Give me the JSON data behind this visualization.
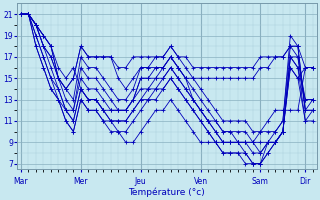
{
  "xlabel": "Température (°c)",
  "day_labels": [
    "Mar",
    "Mer",
    "Jeu",
    "Ven",
    "Sam",
    "Dir"
  ],
  "day_positions": [
    0,
    8,
    16,
    24,
    32,
    38
  ],
  "n_points": 40,
  "ylim": [
    6.5,
    22
  ],
  "yticks": [
    7,
    9,
    11,
    13,
    15,
    17,
    19,
    21
  ],
  "bg_color": "#c8e8f0",
  "grid_color_major": "#8ab0c0",
  "grid_color_minor": "#a8ccd8",
  "line_color": "#0000bb",
  "marker": "+",
  "lines": [
    [
      21,
      21,
      20,
      19,
      18,
      15,
      14,
      15,
      18,
      17,
      17,
      17,
      17,
      16,
      16,
      17,
      17,
      17,
      17,
      17,
      18,
      17,
      17,
      16,
      16,
      16,
      16,
      16,
      16,
      16,
      16,
      16,
      17,
      17,
      17,
      17,
      18,
      18,
      16,
      16
    ],
    [
      21,
      21,
      20,
      19,
      18,
      15,
      14,
      15,
      18,
      17,
      17,
      17,
      17,
      15,
      14,
      15,
      16,
      16,
      16,
      16,
      17,
      16,
      15,
      15,
      15,
      15,
      15,
      15,
      15,
      15,
      15,
      15,
      16,
      16,
      17,
      17,
      18,
      18,
      12,
      12
    ],
    [
      21,
      21,
      20,
      18,
      17,
      15,
      14,
      13,
      17,
      16,
      16,
      15,
      14,
      13,
      13,
      14,
      16,
      16,
      17,
      17,
      18,
      17,
      16,
      15,
      14,
      13,
      12,
      11,
      11,
      11,
      11,
      10,
      10,
      10,
      10,
      11,
      19,
      18,
      12,
      13
    ],
    [
      21,
      21,
      20,
      18,
      17,
      15,
      13,
      12,
      16,
      15,
      15,
      14,
      13,
      12,
      12,
      13,
      15,
      15,
      16,
      16,
      17,
      16,
      15,
      14,
      13,
      12,
      11,
      10,
      10,
      10,
      10,
      9,
      9,
      9,
      10,
      11,
      18,
      17,
      13,
      13
    ],
    [
      21,
      21,
      20,
      18,
      16,
      14,
      12,
      12,
      15,
      14,
      14,
      13,
      12,
      12,
      12,
      13,
      15,
      15,
      15,
      16,
      17,
      16,
      15,
      13,
      12,
      11,
      11,
      10,
      10,
      9,
      9,
      9,
      8,
      9,
      9,
      10,
      17,
      17,
      12,
      12
    ],
    [
      21,
      21,
      19,
      17,
      15,
      14,
      12,
      11,
      14,
      13,
      13,
      12,
      12,
      12,
      12,
      13,
      14,
      14,
      15,
      15,
      16,
      15,
      14,
      13,
      12,
      11,
      10,
      9,
      9,
      9,
      9,
      8,
      8,
      9,
      9,
      10,
      17,
      16,
      13,
      13
    ],
    [
      21,
      21,
      19,
      17,
      15,
      13,
      12,
      11,
      14,
      13,
      13,
      12,
      11,
      11,
      11,
      12,
      13,
      14,
      14,
      15,
      16,
      15,
      14,
      13,
      12,
      11,
      10,
      9,
      9,
      9,
      8,
      7,
      7,
      9,
      9,
      10,
      17,
      16,
      11,
      11
    ],
    [
      21,
      21,
      18,
      16,
      14,
      13,
      11,
      10,
      13,
      12,
      12,
      11,
      11,
      11,
      11,
      12,
      13,
      13,
      14,
      14,
      15,
      14,
      13,
      12,
      11,
      10,
      9,
      8,
      8,
      8,
      8,
      7,
      7,
      8,
      9,
      10,
      16,
      15,
      11,
      12
    ],
    [
      21,
      21,
      18,
      16,
      14,
      13,
      11,
      10,
      13,
      12,
      12,
      11,
      10,
      10,
      10,
      11,
      12,
      13,
      13,
      14,
      15,
      14,
      13,
      12,
      11,
      10,
      9,
      8,
      8,
      8,
      7,
      7,
      7,
      8,
      9,
      10,
      16,
      15,
      16,
      16
    ],
    [
      21,
      21,
      20,
      19,
      18,
      16,
      15,
      16,
      14,
      13,
      13,
      12,
      11,
      10,
      9,
      9,
      10,
      11,
      12,
      12,
      13,
      12,
      11,
      10,
      9,
      9,
      9,
      9,
      9,
      9,
      9,
      9,
      10,
      11,
      12,
      12,
      12,
      12,
      16,
      16
    ]
  ]
}
